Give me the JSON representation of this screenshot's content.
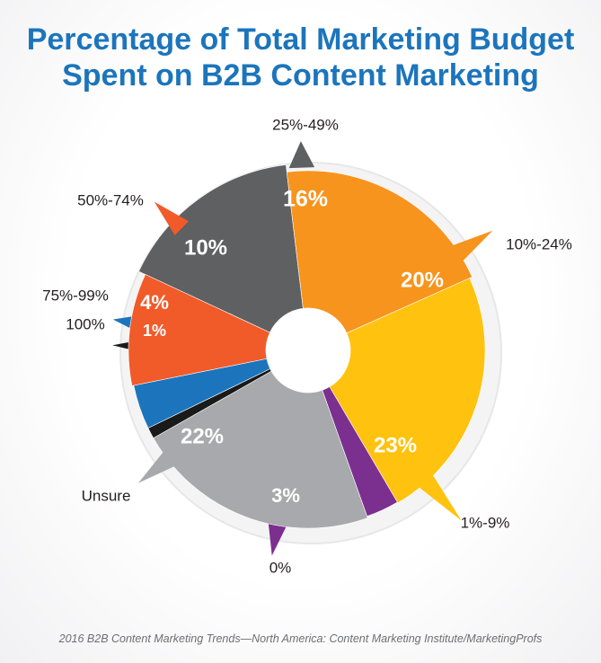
{
  "title_line1": "Percentage of Total Marketing Budget",
  "title_line2": "Spent on B2B Content Marketing",
  "source": "2016 B2B Content Marketing Trends—North America: Content Marketing Institute/MarketingProfs",
  "chart_data": {
    "type": "pie",
    "title": "Percentage of Total Marketing Budget Spent on B2B Content Marketing",
    "categories": [
      "25%-49%",
      "10%-24%",
      "1%-9%",
      "0%",
      "Unsure",
      "100%",
      "75%-99%",
      "50%-74%"
    ],
    "values": [
      16,
      20,
      23,
      3,
      22,
      1,
      4,
      10
    ],
    "value_labels": [
      "16%",
      "20%",
      "23%",
      "3%",
      "22%",
      "1%",
      "4%",
      "10%"
    ],
    "colors": [
      "#5f6062",
      "#f7941d",
      "#ffc20e",
      "#7b2f8e",
      "#a8a9ad",
      "#1a1a1a",
      "#1c75bc",
      "#f15a29"
    ],
    "donut_hole": true
  }
}
